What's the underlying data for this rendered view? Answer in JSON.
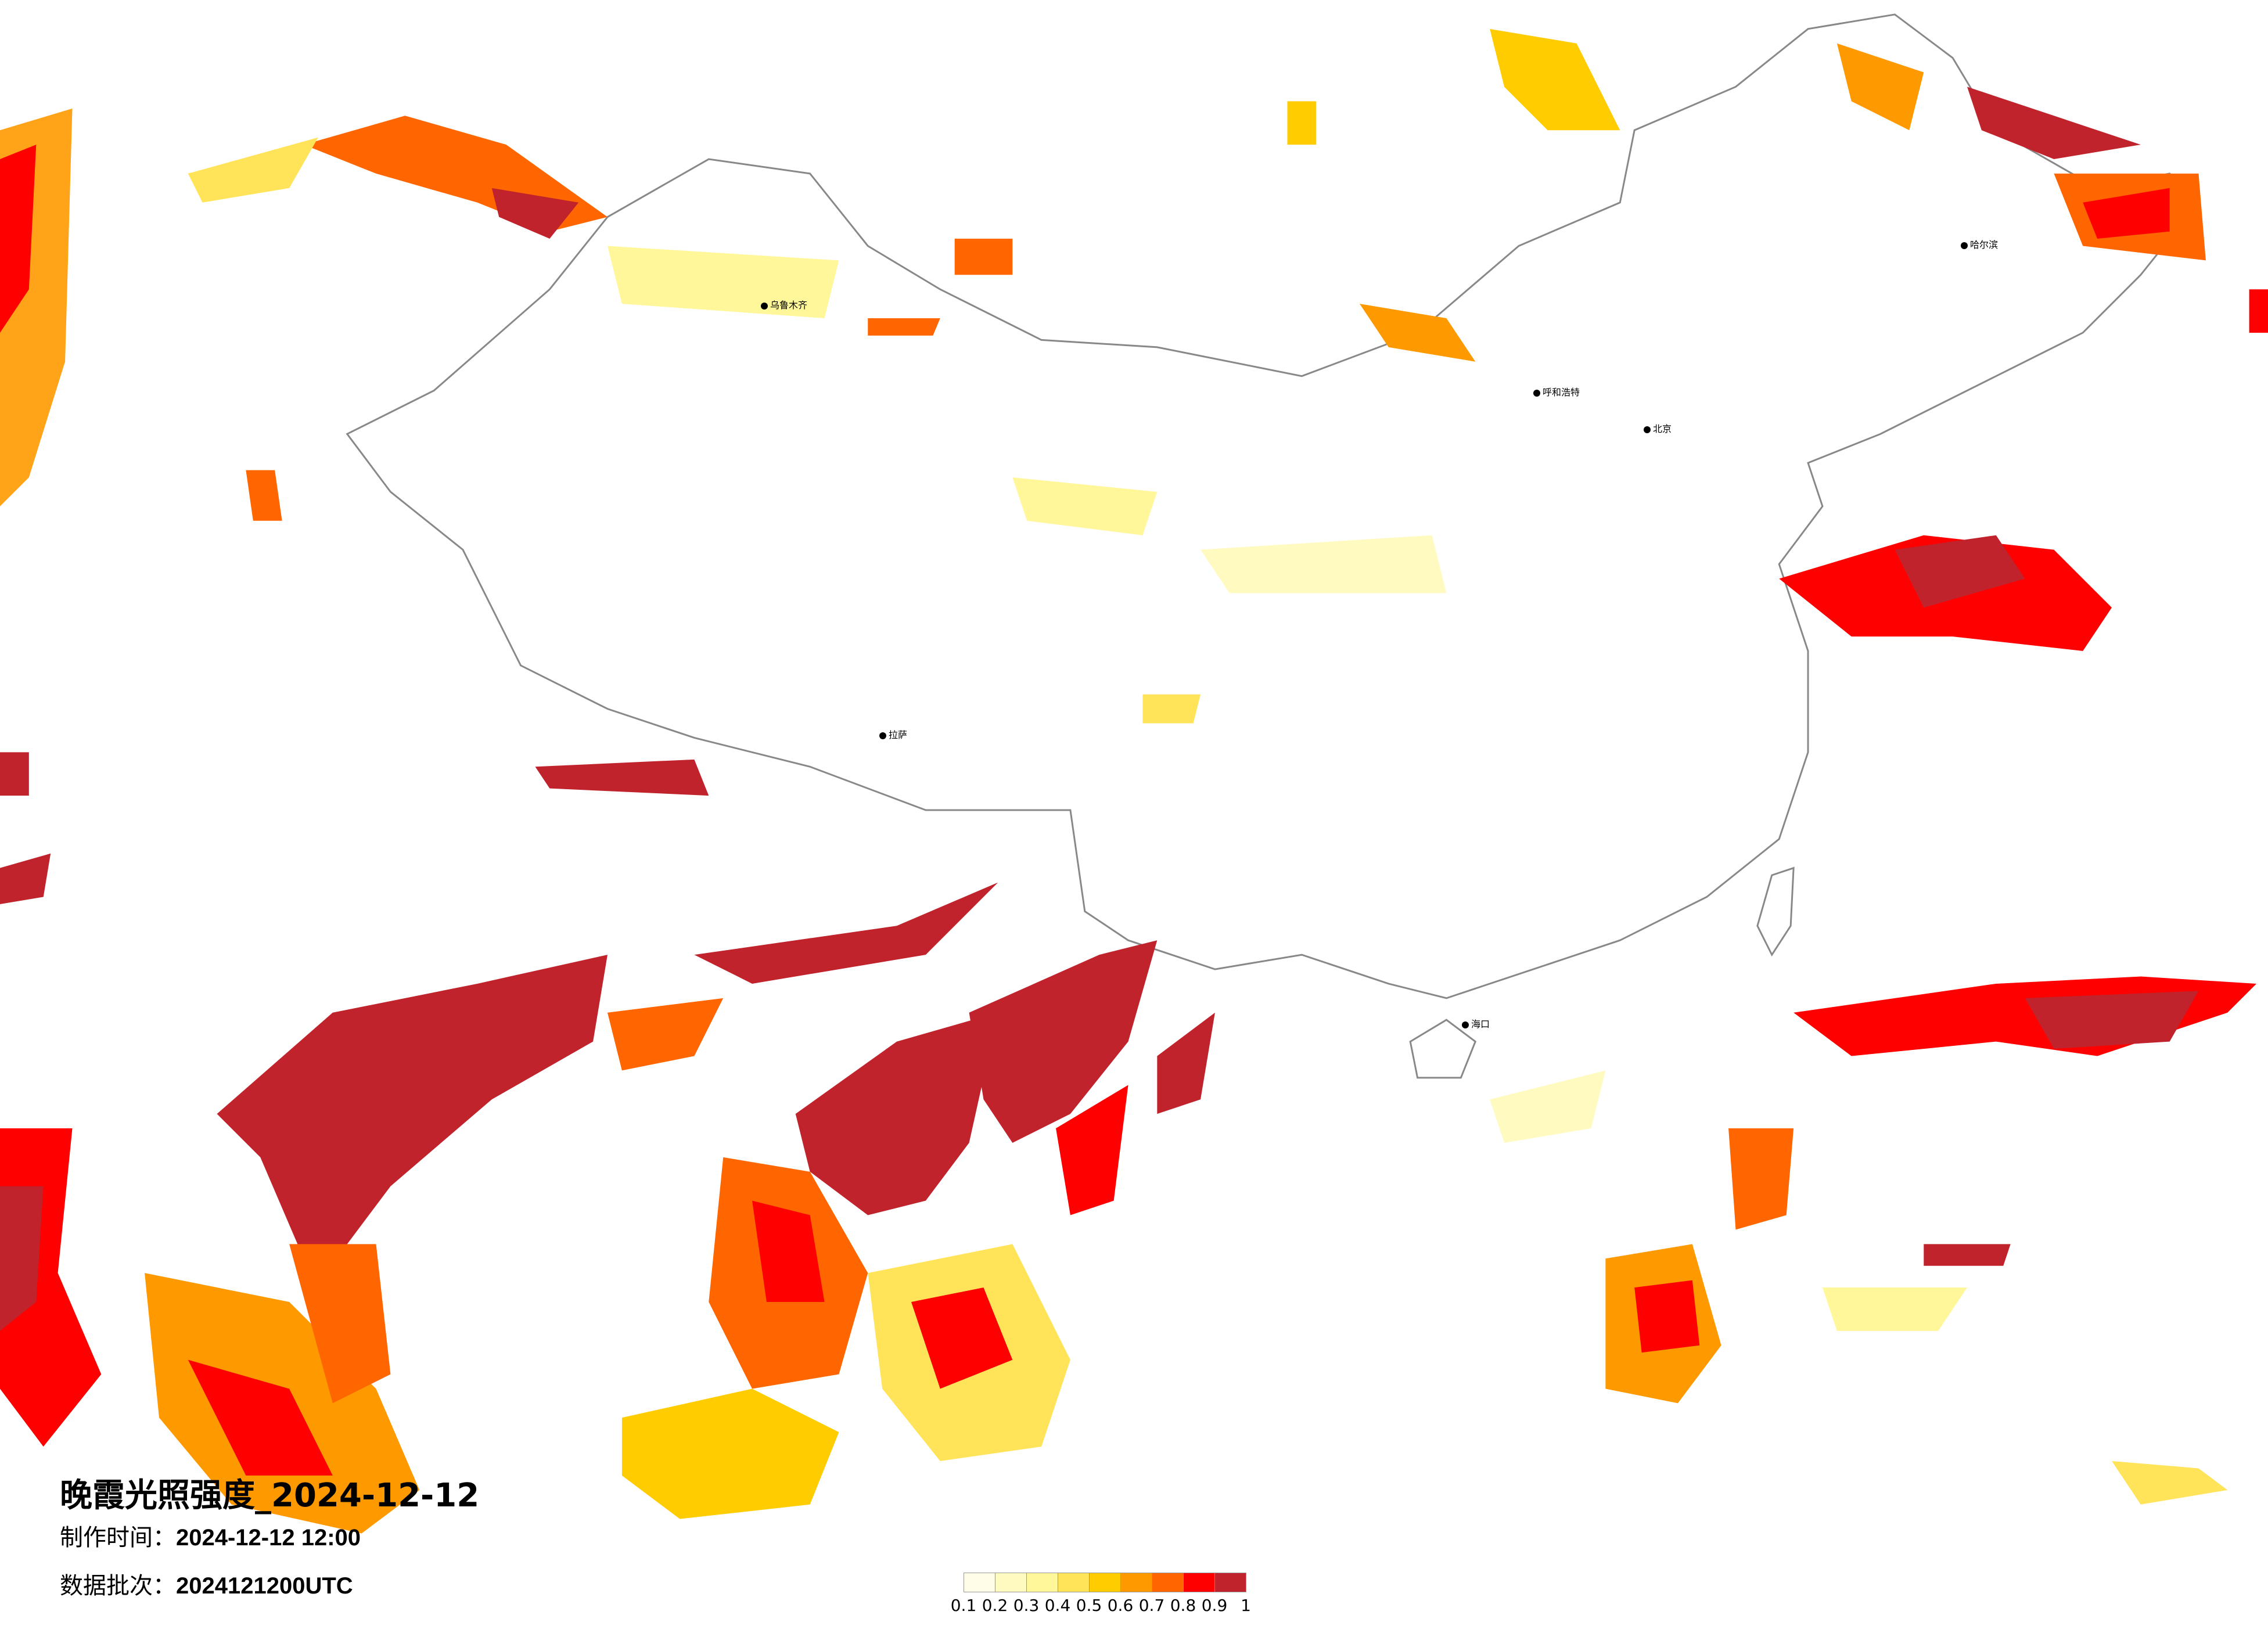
{
  "title": "晚霞光照强度_2024-12-12",
  "made_time_label": "制作时间：",
  "made_time_value": "2024-12-12 12:00",
  "batch_label": "数据批次：",
  "batch_value": "2024121200UTC",
  "legend": {
    "ticks": [
      "0.1",
      "0.2",
      "0.3",
      "0.4",
      "0.5",
      "0.6",
      "0.7",
      "0.8",
      "0.9",
      "1"
    ],
    "colors": [
      "#fffde8",
      "#fffbc0",
      "#fff799",
      "#ffe45a",
      "#ffcc00",
      "#ff9900",
      "#ff6600",
      "#ff0000",
      "#c0232c"
    ]
  },
  "cities": [
    {
      "name": "乌鲁木齐"
    },
    {
      "name": "呼和浩特"
    },
    {
      "name": "北京"
    },
    {
      "name": "哈尔滨"
    },
    {
      "name": "拉萨"
    },
    {
      "name": "海口"
    }
  ]
}
